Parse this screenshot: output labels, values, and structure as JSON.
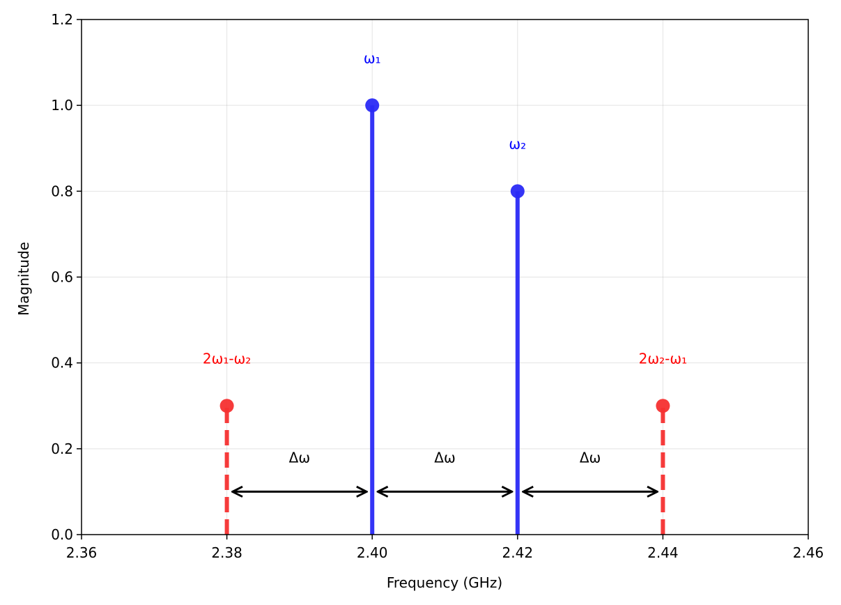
{
  "chart_data": {
    "type": "stem",
    "xlabel": "Frequency (GHz)",
    "ylabel": "Magnitude",
    "xlim": [
      2.36,
      2.46
    ],
    "ylim": [
      0.0,
      1.2
    ],
    "xticks": [
      "2.36",
      "2.38",
      "2.40",
      "2.42",
      "2.44",
      "2.46"
    ],
    "yticks": [
      "0.0",
      "0.2",
      "0.4",
      "0.6",
      "0.8",
      "1.0",
      "1.2"
    ],
    "grid": true,
    "colors": {
      "fundamental": "#2a2af5",
      "intermod": "#f53030",
      "arrow": "#000000"
    },
    "series": [
      {
        "kind": "fundamental",
        "style": "solid",
        "points": [
          {
            "x": 2.4,
            "y": 1.0,
            "label": "ω₁"
          },
          {
            "x": 2.42,
            "y": 0.8,
            "label": "ω₂"
          }
        ]
      },
      {
        "kind": "intermod",
        "style": "dashed",
        "points": [
          {
            "x": 2.38,
            "y": 0.3,
            "label": "2ω₁-ω₂"
          },
          {
            "x": 2.44,
            "y": 0.3,
            "label": "2ω₂-ω₁"
          }
        ]
      }
    ],
    "spacing_arrows": [
      {
        "from": 2.38,
        "to": 2.4,
        "y": 0.1,
        "label": "Δω"
      },
      {
        "from": 2.4,
        "to": 2.42,
        "y": 0.1,
        "label": "Δω"
      },
      {
        "from": 2.42,
        "to": 2.44,
        "y": 0.1,
        "label": "Δω"
      }
    ]
  }
}
